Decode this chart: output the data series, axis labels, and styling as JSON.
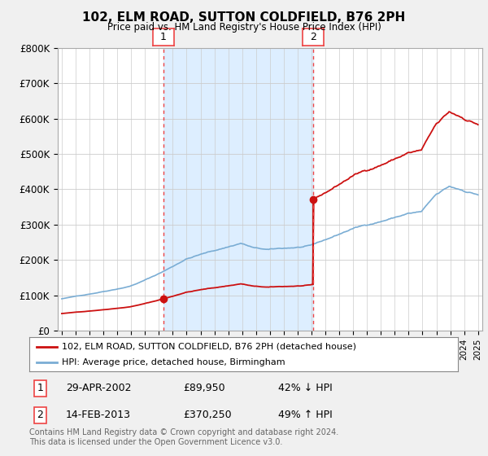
{
  "title": "102, ELM ROAD, SUTTON COLDFIELD, B76 2PH",
  "subtitle": "Price paid vs. HM Land Registry's House Price Index (HPI)",
  "ylim": [
    0,
    800000
  ],
  "yticks": [
    0,
    100000,
    200000,
    300000,
    400000,
    500000,
    600000,
    700000,
    800000
  ],
  "ytick_labels": [
    "£0",
    "£100K",
    "£200K",
    "£300K",
    "£400K",
    "£500K",
    "£600K",
    "£700K",
    "£800K"
  ],
  "hpi_color": "#7aadd4",
  "price_color": "#cc1111",
  "vline_color": "#ee4444",
  "shade_color": "#ddeeff",
  "background_color": "#f0f0f0",
  "plot_background": "#ffffff",
  "grid_color": "#cccccc",
  "legend_label_price": "102, ELM ROAD, SUTTON COLDFIELD, B76 2PH (detached house)",
  "legend_label_hpi": "HPI: Average price, detached house, Birmingham",
  "sale1_date": "29-APR-2002",
  "sale1_price": "£89,950",
  "sale1_hpi": "42% ↓ HPI",
  "sale2_date": "14-FEB-2013",
  "sale2_price": "£370,250",
  "sale2_hpi": "49% ↑ HPI",
  "footer": "Contains HM Land Registry data © Crown copyright and database right 2024.\nThis data is licensed under the Open Government Licence v3.0.",
  "sale1_year": 2002.33,
  "sale2_year": 2013.12,
  "sale1_value": 89950,
  "sale2_value": 370250,
  "xlim": [
    1994.7,
    2025.3
  ]
}
